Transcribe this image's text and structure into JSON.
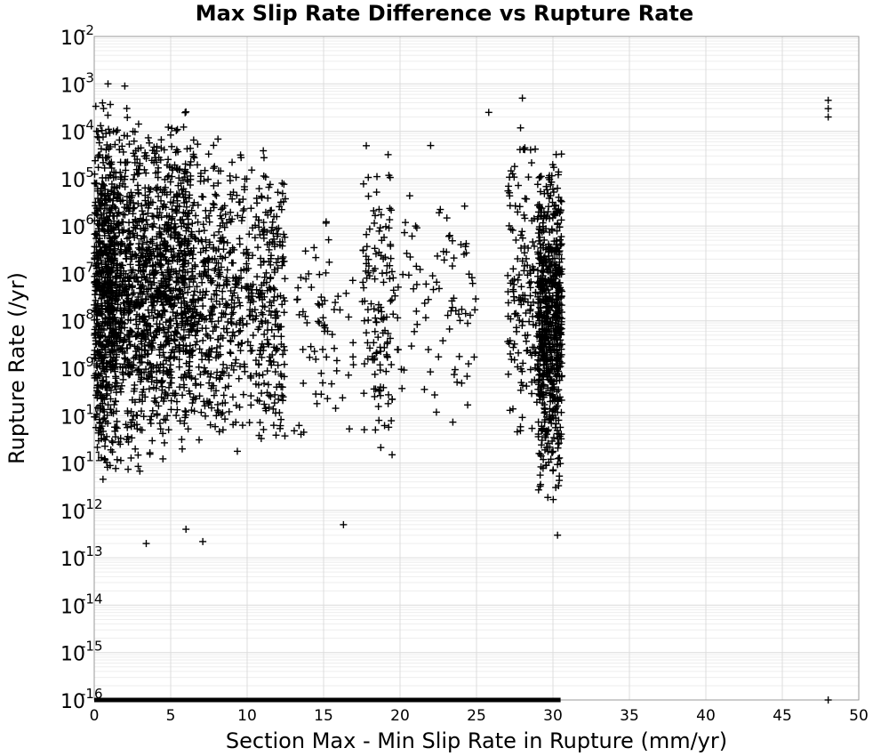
{
  "chart_data": {
    "type": "scatter",
    "title": "Max Slip Rate Difference vs Rupture Rate",
    "xlabel": "Section Max - Min Slip Rate in Rupture (mm/yr)",
    "ylabel": "Rupture Rate (/yr)",
    "xlim": [
      0,
      50
    ],
    "ylim": [
      1e-16,
      0.01
    ],
    "yscale": "log",
    "grid": true,
    "legend": "none",
    "marker": "plus",
    "marker_color": "#000000",
    "x_ticks": [
      "0",
      "5",
      "10",
      "15",
      "20",
      "25",
      "30",
      "35",
      "40",
      "45",
      "50"
    ],
    "y_ticks": [
      {
        "base": "10",
        "exp": "-16"
      },
      {
        "base": "10",
        "exp": "-15"
      },
      {
        "base": "10",
        "exp": "-14"
      },
      {
        "base": "10",
        "exp": "-13"
      },
      {
        "base": "10",
        "exp": "-12"
      },
      {
        "base": "10",
        "exp": "-11"
      },
      {
        "base": "10",
        "exp": "-10"
      },
      {
        "base": "10",
        "exp": "-9"
      },
      {
        "base": "10",
        "exp": "-8"
      },
      {
        "base": "10",
        "exp": "-7"
      },
      {
        "base": "10",
        "exp": "-6"
      },
      {
        "base": "10",
        "exp": "-5"
      },
      {
        "base": "10",
        "exp": "-4"
      },
      {
        "base": "10",
        "exp": "-3"
      },
      {
        "base": "10",
        "exp": "-2"
      }
    ],
    "clusters": [
      {
        "x_range": [
          0.0,
          1.5
        ],
        "log10_rate_range": [
          -11.5,
          -3.3
        ],
        "count": 700
      },
      {
        "x_range": [
          1.5,
          4.0
        ],
        "log10_rate_range": [
          -11.2,
          -3.4
        ],
        "count": 600
      },
      {
        "x_range": [
          4.0,
          6.5
        ],
        "log10_rate_range": [
          -11.0,
          -3.5
        ],
        "count": 600
      },
      {
        "x_range": [
          6.5,
          8.5
        ],
        "log10_rate_range": [
          -11.0,
          -3.8
        ],
        "count": 250
      },
      {
        "x_range": [
          8.5,
          10.5
        ],
        "log10_rate_range": [
          -10.8,
          -4.0
        ],
        "count": 170
      },
      {
        "x_range": [
          10.5,
          12.5
        ],
        "log10_rate_range": [
          -11.0,
          -4.2
        ],
        "count": 220
      },
      {
        "x_range": [
          13.0,
          17.0
        ],
        "log10_rate_range": [
          -11.0,
          -5.5
        ],
        "count": 70
      },
      {
        "x_range": [
          17.5,
          19.5
        ],
        "log10_rate_range": [
          -11.0,
          -4.2
        ],
        "count": 130
      },
      {
        "x_range": [
          19.5,
          25.0
        ],
        "log10_rate_range": [
          -10.8,
          -4.8
        ],
        "count": 90
      },
      {
        "x_range": [
          27.0,
          29.0
        ],
        "log10_rate_range": [
          -11.0,
          -3.5
        ],
        "count": 150
      },
      {
        "x_range": [
          29.0,
          30.6
        ],
        "log10_rate_range": [
          -11.8,
          -4.4
        ],
        "count": 700
      }
    ],
    "notable_points": [
      {
        "x": 48.0,
        "y": 0.00045
      },
      {
        "x": 48.0,
        "y": 0.0003
      },
      {
        "x": 48.0,
        "y": 0.0002
      },
      {
        "x": 48.0,
        "y": 1e-16
      },
      {
        "x": 3.4,
        "y": 2e-13
      },
      {
        "x": 6.0,
        "y": 4e-13
      },
      {
        "x": 7.1,
        "y": 2.2e-13
      },
      {
        "x": 16.3,
        "y": 5e-13
      },
      {
        "x": 30.3,
        "y": 3e-13
      },
      {
        "x": 0.9,
        "y": 0.001
      },
      {
        "x": 2.0,
        "y": 0.0009
      },
      {
        "x": 28.0,
        "y": 0.0005
      },
      {
        "x": 25.8,
        "y": 0.00025
      },
      {
        "x": 22.0,
        "y": 5e-05
      }
    ],
    "zero_rate_band": {
      "x_range": [
        0.0,
        30.5
      ],
      "y": 1e-16
    }
  }
}
